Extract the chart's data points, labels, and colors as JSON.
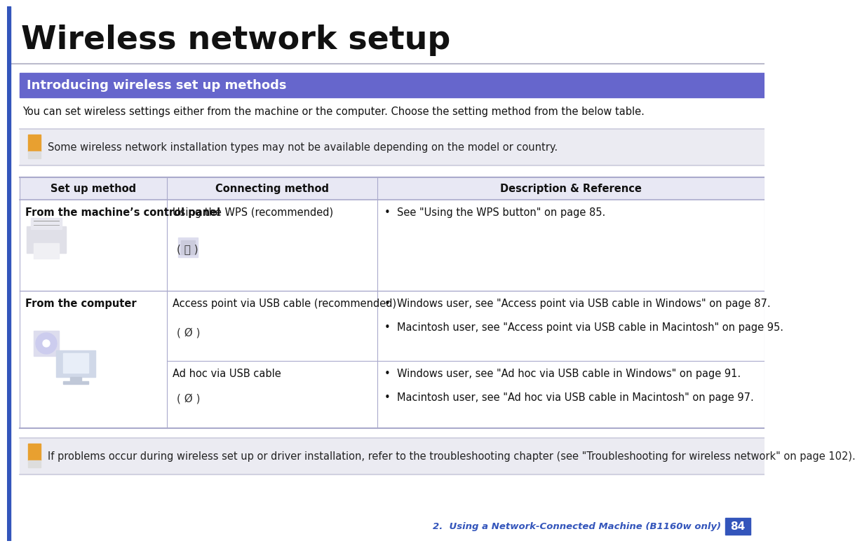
{
  "page_title": "Wireless network setup",
  "title_bar_color": "#6666cc",
  "title_bar_text": "Introducing wireless set up methods",
  "title_bar_text_color": "#ffffff",
  "intro_text": "You can set wireless settings either from the machine or the computer. Choose the setting method from the below table.",
  "note1_text": "Some wireless network installation types may not be available depending on the model or country.",
  "note2_text": "If problems occur during wireless set up or driver installation, refer to the troubleshooting chapter (see \"Troubleshooting for wireless network\" on page 102).",
  "table_header_bg": "#e8e8f4",
  "table_col1_header": "Set up method",
  "table_col2_header": "Connecting method",
  "table_col3_header": "Description & Reference",
  "row1_col1_bold": "From the machine’s control panel",
  "row1_col2_line1": "Using the WPS (recommended)",
  "row1_col2_icon": "( ⒫ )",
  "row1_col3": "•  See \"Using the WPS button\" on page 85.",
  "row2_col1_bold": "From the computer",
  "row2_col2a_line1": "Access point via USB cable (recommended)",
  "row2_col2a_icon": "( Ø )",
  "row2_col3a_line1": "•  Windows user, see \"Access point via USB cable in Windows\" on page 87.",
  "row2_col3a_line2": "•  Macintosh user, see \"Access point via USB cable in Macintosh\" on page 95.",
  "row2_col2b_line1": "Ad hoc via USB cable",
  "row2_col2b_icon": "( Ø )",
  "row2_col3b_line1": "•  Windows user, see \"Ad hoc via USB cable in Windows\" on page 91.",
  "row2_col3b_line2": "•  Macintosh user, see \"Ad hoc via USB cable in Macintosh\" on page 97.",
  "footer_text": "2.  Using a Network-Connected Machine (B1160w only)",
  "footer_page": "84",
  "footer_text_color": "#3355bb",
  "footer_page_bg": "#3355bb",
  "footer_page_text_color": "#ffffff",
  "note_bg_color": "#ebebf2",
  "bg_color": "#ffffff",
  "left_bar_color": "#3355bb",
  "table_border_color": "#aaaacc",
  "separator_color": "#ccccdd",
  "title_sep_color": "#bbbbcc"
}
